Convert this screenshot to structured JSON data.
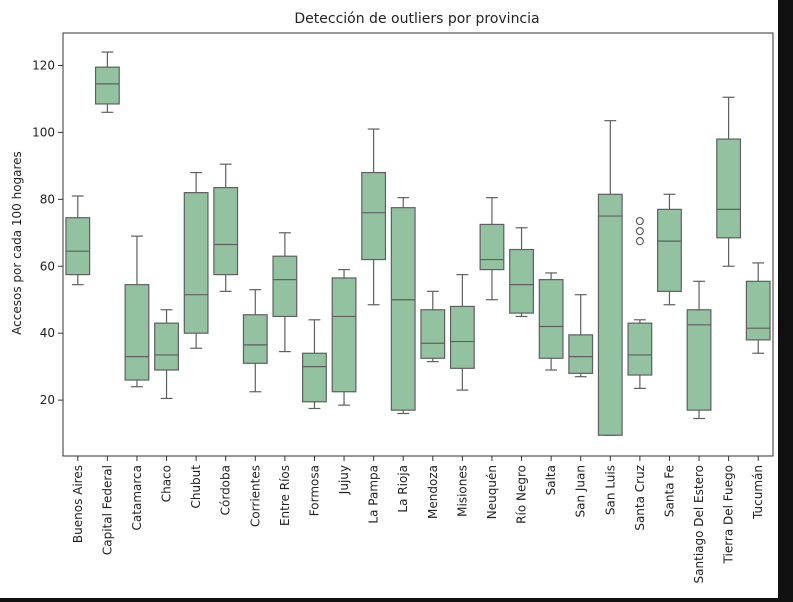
{
  "chart_data": {
    "type": "boxplot",
    "title": "Detección de outliers por provincia",
    "xlabel": "",
    "ylabel": "Accesos por cada 100 hogares",
    "ylim": [
      3.3,
      129.7
    ],
    "yticks": [
      20,
      40,
      60,
      80,
      100,
      120
    ],
    "grid": false,
    "box_color": "#93c2a1",
    "edge_color": "#5f5f5f",
    "categories": [
      "Buenos Aires",
      "Capital Federal",
      "Catamarca",
      "Chaco",
      "Chubut",
      "Córdoba",
      "Corrientes",
      "Entre Ríos",
      "Formosa",
      "Jujuy",
      "La Pampa",
      "La Rioja",
      "Mendoza",
      "Misiones",
      "Neuquén",
      "Río Negro",
      "Salta",
      "San Juan",
      "San Luis",
      "Santa Cruz",
      "Santa Fe",
      "Santiago Del Estero",
      "Tierra Del Fuego",
      "Tucumán"
    ],
    "boxes": [
      {
        "whislo": 54.5,
        "q1": 57.5,
        "med": 64.5,
        "q3": 74.5,
        "whishi": 81.0,
        "fliers": []
      },
      {
        "whislo": 106.0,
        "q1": 108.5,
        "med": 114.5,
        "q3": 119.5,
        "whishi": 124.0,
        "fliers": []
      },
      {
        "whislo": 24.0,
        "q1": 26.0,
        "med": 33.0,
        "q3": 54.5,
        "whishi": 69.0,
        "fliers": []
      },
      {
        "whislo": 20.5,
        "q1": 29.0,
        "med": 33.5,
        "q3": 43.0,
        "whishi": 47.0,
        "fliers": []
      },
      {
        "whislo": 35.5,
        "q1": 40.0,
        "med": 51.5,
        "q3": 82.0,
        "whishi": 88.0,
        "fliers": []
      },
      {
        "whislo": 52.5,
        "q1": 57.5,
        "med": 66.5,
        "q3": 83.5,
        "whishi": 90.5,
        "fliers": []
      },
      {
        "whislo": 22.5,
        "q1": 31.0,
        "med": 36.5,
        "q3": 45.5,
        "whishi": 53.0,
        "fliers": []
      },
      {
        "whislo": 34.5,
        "q1": 45.0,
        "med": 56.0,
        "q3": 63.0,
        "whishi": 70.0,
        "fliers": []
      },
      {
        "whislo": 17.5,
        "q1": 19.5,
        "med": 30.0,
        "q3": 34.0,
        "whishi": 44.0,
        "fliers": []
      },
      {
        "whislo": 18.5,
        "q1": 22.5,
        "med": 45.0,
        "q3": 56.5,
        "whishi": 59.0,
        "fliers": []
      },
      {
        "whislo": 48.5,
        "q1": 62.0,
        "med": 76.0,
        "q3": 88.0,
        "whishi": 101.0,
        "fliers": []
      },
      {
        "whislo": 16.0,
        "q1": 17.0,
        "med": 50.0,
        "q3": 77.5,
        "whishi": 80.5,
        "fliers": []
      },
      {
        "whislo": 31.5,
        "q1": 32.5,
        "med": 37.0,
        "q3": 47.0,
        "whishi": 52.5,
        "fliers": []
      },
      {
        "whislo": 23.0,
        "q1": 29.5,
        "med": 37.5,
        "q3": 48.0,
        "whishi": 57.5,
        "fliers": []
      },
      {
        "whislo": 50.0,
        "q1": 59.0,
        "med": 62.0,
        "q3": 72.5,
        "whishi": 80.5,
        "fliers": []
      },
      {
        "whislo": 45.0,
        "q1": 46.0,
        "med": 54.5,
        "q3": 65.0,
        "whishi": 71.5,
        "fliers": []
      },
      {
        "whislo": 29.0,
        "q1": 32.5,
        "med": 42.0,
        "q3": 56.0,
        "whishi": 58.0,
        "fliers": []
      },
      {
        "whislo": 27.0,
        "q1": 28.0,
        "med": 33.0,
        "q3": 39.5,
        "whishi": 51.5,
        "fliers": []
      },
      {
        "whislo": 9.5,
        "q1": 9.5,
        "med": 75.0,
        "q3": 81.5,
        "whishi": 103.5,
        "fliers": []
      },
      {
        "whislo": 23.5,
        "q1": 27.5,
        "med": 33.5,
        "q3": 43.0,
        "whishi": 44.0,
        "fliers": [
          67.5,
          70.5,
          73.5
        ]
      },
      {
        "whislo": 48.5,
        "q1": 52.5,
        "med": 67.5,
        "q3": 77.0,
        "whishi": 81.5,
        "fliers": []
      },
      {
        "whislo": 14.5,
        "q1": 17.0,
        "med": 42.5,
        "q3": 47.0,
        "whishi": 55.5,
        "fliers": []
      },
      {
        "whislo": 60.0,
        "q1": 68.5,
        "med": 77.0,
        "q3": 98.0,
        "whishi": 110.5,
        "fliers": []
      },
      {
        "whislo": 34.0,
        "q1": 38.0,
        "med": 41.5,
        "q3": 55.5,
        "whishi": 61.0,
        "fliers": []
      }
    ]
  }
}
